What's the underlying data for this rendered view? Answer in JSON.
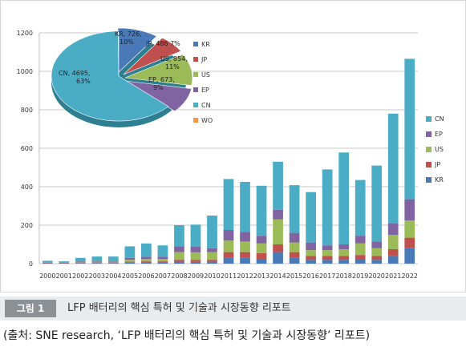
{
  "chart_data": [
    {
      "type": "bar",
      "stacked": true,
      "categories": [
        "2000",
        "2001",
        "2002",
        "2003",
        "2004",
        "2005",
        "2006",
        "2007",
        "2008",
        "2009",
        "2010",
        "2011",
        "2012",
        "2013",
        "2014",
        "2015",
        "2016",
        "2017",
        "2018",
        "2019",
        "2020",
        "2021",
        "2022"
      ],
      "series": [
        {
          "name": "KR",
          "color": "#4a79b8",
          "values": [
            2,
            2,
            3,
            3,
            3,
            5,
            6,
            6,
            10,
            9,
            10,
            30,
            30,
            25,
            60,
            30,
            20,
            20,
            20,
            25,
            20,
            40,
            80
          ]
        },
        {
          "name": "JP",
          "color": "#c0504d",
          "values": [
            2,
            2,
            3,
            3,
            3,
            5,
            6,
            6,
            10,
            10,
            10,
            30,
            30,
            30,
            40,
            30,
            20,
            20,
            20,
            20,
            20,
            35,
            55
          ]
        },
        {
          "name": "US",
          "color": "#9bbb59",
          "values": [
            2,
            2,
            4,
            4,
            4,
            10,
            12,
            12,
            40,
            40,
            40,
            60,
            55,
            50,
            130,
            50,
            30,
            30,
            35,
            60,
            40,
            75,
            90
          ]
        },
        {
          "name": "EP",
          "color": "#8064a2",
          "values": [
            2,
            2,
            4,
            4,
            4,
            10,
            12,
            12,
            30,
            30,
            20,
            55,
            50,
            40,
            50,
            50,
            40,
            25,
            25,
            40,
            35,
            60,
            110
          ]
        },
        {
          "name": "CN",
          "color": "#4bacc6",
          "values": [
            7,
            4,
            16,
            23,
            23,
            60,
            69,
            59,
            110,
            114,
            170,
            265,
            260,
            260,
            250,
            248,
            262,
            395,
            478,
            290,
            395,
            570,
            730
          ]
        }
      ],
      "ylim": [
        0,
        1200
      ],
      "yticks": [
        0,
        200,
        400,
        600,
        800,
        1000,
        1200
      ],
      "legend_position": "right",
      "grid": "horizontal"
    },
    {
      "type": "pie",
      "slices": [
        {
          "name": "KR",
          "value": 726,
          "label": "KR, 726,\n10%",
          "color": "#4a79b8"
        },
        {
          "name": "JP",
          "value": 486,
          "label": "JP, 486  7%",
          "color": "#c0504d"
        },
        {
          "name": "US",
          "value": 854,
          "label": "US, 854,\n11%",
          "color": "#9bbb59"
        },
        {
          "name": "EP",
          "value": 673,
          "label": "EP, 673,\n9%",
          "color": "#8064a2"
        },
        {
          "name": "CN",
          "value": 4695,
          "label": "CN, 4695,\n63%",
          "color": "#4bacc6"
        },
        {
          "name": "WO",
          "value": 10,
          "label": "",
          "color": "#f79646"
        }
      ],
      "legend": [
        {
          "name": "KR",
          "color": "#4a79b8"
        },
        {
          "name": "JP",
          "color": "#c0504d"
        },
        {
          "name": "US",
          "color": "#9bbb59"
        },
        {
          "name": "EP",
          "color": "#8064a2"
        },
        {
          "name": "CN",
          "color": "#4bacc6"
        },
        {
          "name": "WO",
          "color": "#f79646"
        }
      ],
      "legend_position": "right"
    }
  ],
  "caption": {
    "tag": "그림 1",
    "title": "LFP 배터리의 핵심 특허 및 기술과 시장동향 리포트"
  },
  "source": "(출처: SNE research, ‘LFP 배터리의 핵심 특허 및 기술과 시장동향’ 리포트)"
}
